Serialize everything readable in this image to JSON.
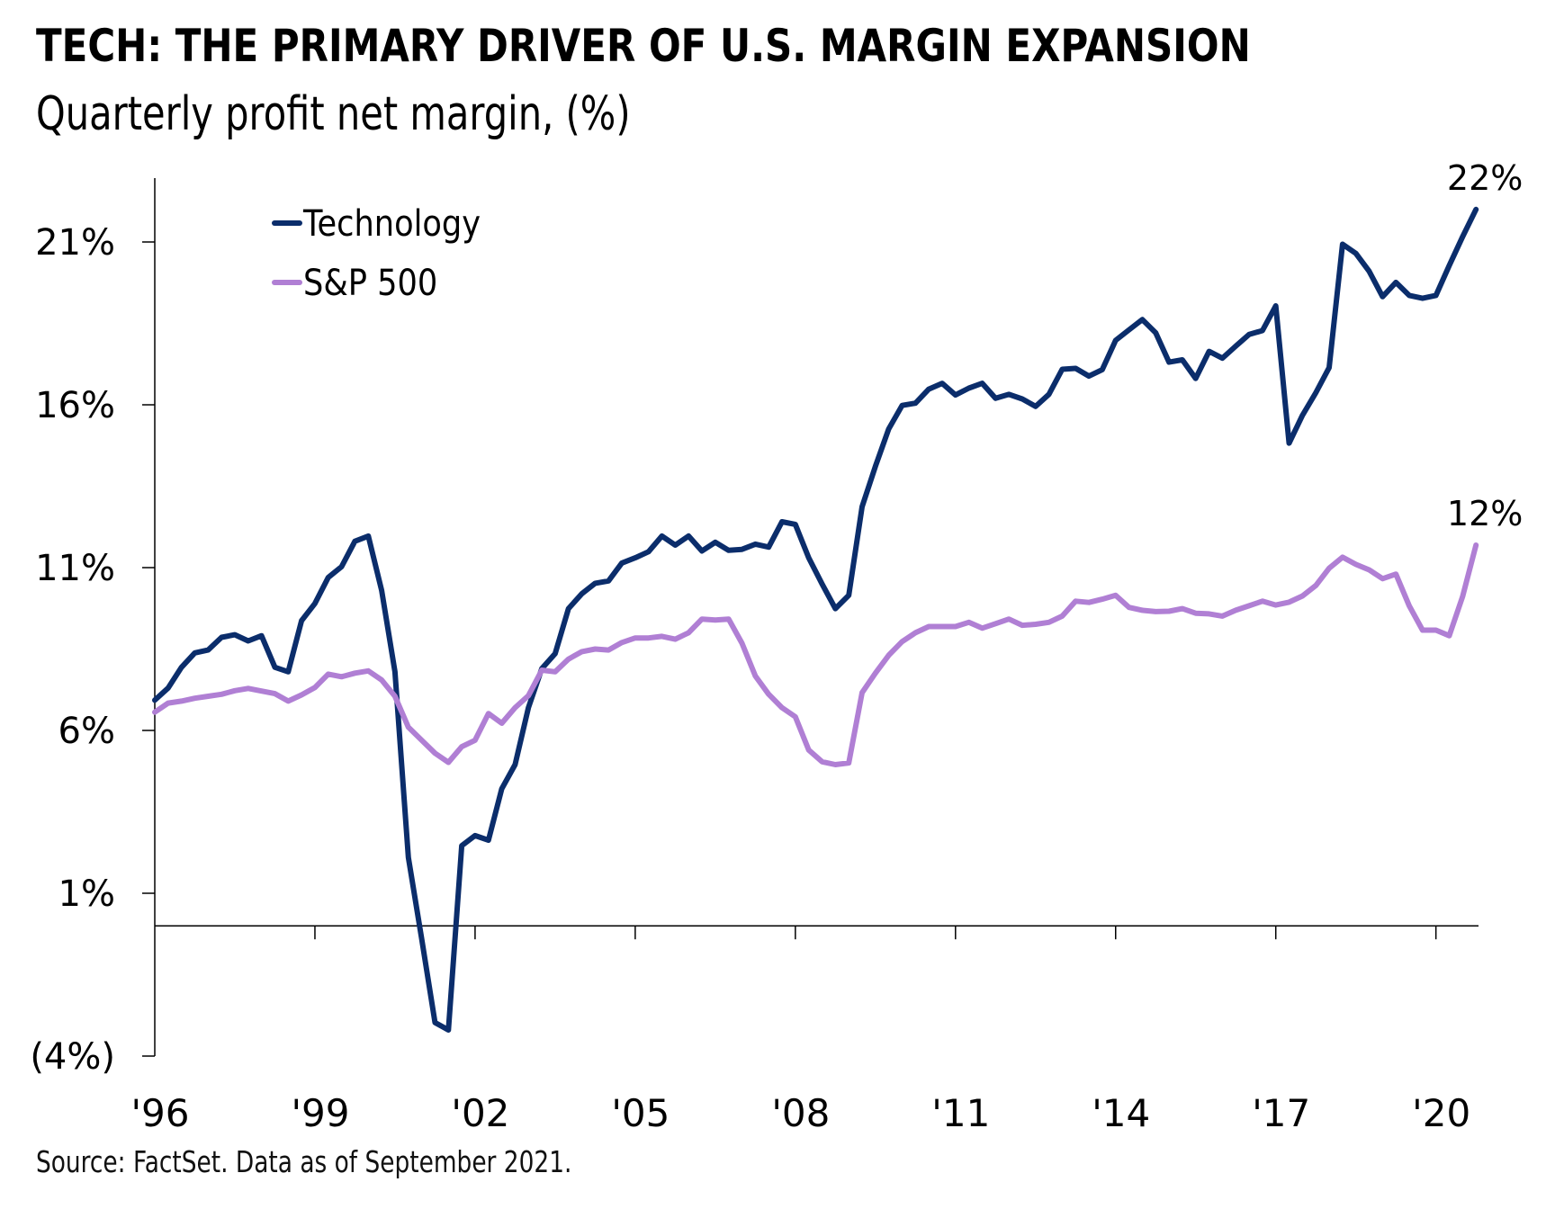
{
  "header": {
    "title": "TECH: THE PRIMARY DRIVER OF U.S. MARGIN EXPANSION",
    "subtitle": "Quarterly profit net margin, (%)"
  },
  "footer": {
    "source": "Source: FactSet. Data as of September 2021."
  },
  "chart_data": {
    "type": "line",
    "title": "TECH: THE PRIMARY DRIVER OF U.S. MARGIN EXPANSION",
    "subtitle": "Quarterly profit net margin, (%)",
    "xlabel": "",
    "ylabel": "",
    "frequency": "quarterly",
    "x_start": 1996,
    "x_step": 0.25,
    "xlim": [
      1996,
      2020.8
    ],
    "ylim": [
      -4,
      23
    ],
    "grid": false,
    "legend_position": "top-left",
    "x_ticks": [
      {
        "value": 1996,
        "label": "'96"
      },
      {
        "value": 1999,
        "label": "'99"
      },
      {
        "value": 2002,
        "label": "'02"
      },
      {
        "value": 2005,
        "label": "'05"
      },
      {
        "value": 2008,
        "label": "'08"
      },
      {
        "value": 2011,
        "label": "'11"
      },
      {
        "value": 2014,
        "label": "'14"
      },
      {
        "value": 2017,
        "label": "'17"
      },
      {
        "value": 2020,
        "label": "'20"
      }
    ],
    "y_ticks": [
      {
        "value": 21,
        "label": "21%"
      },
      {
        "value": 16,
        "label": "16%"
      },
      {
        "value": 11,
        "label": "11%"
      },
      {
        "value": 6,
        "label": "6%"
      },
      {
        "value": 1,
        "label": "1%"
      },
      {
        "value": -4,
        "label": "(4%)"
      }
    ],
    "series": [
      {
        "name": "Technology",
        "color": "#0B2D6B",
        "end_label": "22%",
        "values": [
          6.93,
          7.3,
          7.94,
          8.38,
          8.47,
          8.86,
          8.94,
          8.75,
          8.91,
          7.94,
          7.8,
          9.37,
          9.9,
          10.7,
          11.03,
          11.81,
          11.97,
          10.3,
          7.8,
          2.1,
          -0.4,
          -2.97,
          -3.2,
          2.46,
          2.77,
          2.63,
          4.21,
          4.95,
          6.7,
          7.9,
          8.36,
          9.74,
          10.2,
          10.52,
          10.59,
          11.14,
          11.3,
          11.49,
          11.97,
          11.69,
          11.97,
          11.51,
          11.78,
          11.53,
          11.56,
          11.72,
          11.63,
          12.41,
          12.33,
          11.3,
          10.5,
          9.74,
          10.15,
          12.87,
          14.11,
          15.26,
          15.98,
          16.05,
          16.48,
          16.66,
          16.3,
          16.51,
          16.66,
          16.2,
          16.32,
          16.18,
          15.95,
          16.32,
          17.09,
          17.12,
          16.88,
          17.08,
          17.98,
          18.3,
          18.62,
          18.21,
          17.31,
          17.38,
          16.81,
          17.64,
          17.43,
          17.8,
          18.16,
          18.28,
          19.04,
          14.82,
          15.68,
          16.37,
          17.14,
          20.93,
          20.65,
          20.1,
          19.32,
          19.76,
          19.36,
          19.27,
          19.36,
          20.28,
          21.16,
          22.0
        ]
      },
      {
        "name": "S&P 500",
        "color": "#B07FD4",
        "end_label": "12%",
        "values": [
          6.56,
          6.84,
          6.9,
          6.99,
          7.05,
          7.11,
          7.22,
          7.29,
          7.21,
          7.13,
          6.9,
          7.09,
          7.32,
          7.73,
          7.65,
          7.76,
          7.83,
          7.55,
          7.05,
          6.1,
          5.7,
          5.3,
          5.02,
          5.5,
          5.7,
          6.52,
          6.22,
          6.7,
          7.07,
          7.85,
          7.8,
          8.19,
          8.42,
          8.5,
          8.47,
          8.7,
          8.84,
          8.84,
          8.89,
          8.8,
          9.0,
          9.42,
          9.39,
          9.42,
          8.68,
          7.67,
          7.11,
          6.7,
          6.42,
          5.4,
          5.04,
          4.95,
          5.0,
          7.16,
          7.76,
          8.31,
          8.73,
          9.0,
          9.19,
          9.19,
          9.19,
          9.32,
          9.14,
          9.28,
          9.42,
          9.23,
          9.26,
          9.32,
          9.51,
          9.97,
          9.93,
          10.03,
          10.15,
          9.78,
          9.69,
          9.65,
          9.66,
          9.74,
          9.6,
          9.58,
          9.51,
          9.69,
          9.83,
          9.97,
          9.85,
          9.94,
          10.13,
          10.45,
          10.98,
          11.32,
          11.1,
          10.93,
          10.66,
          10.8,
          9.83,
          9.08,
          9.08,
          8.91,
          10.11,
          11.69
        ]
      }
    ],
    "x_axis_crosses_at": 0
  }
}
